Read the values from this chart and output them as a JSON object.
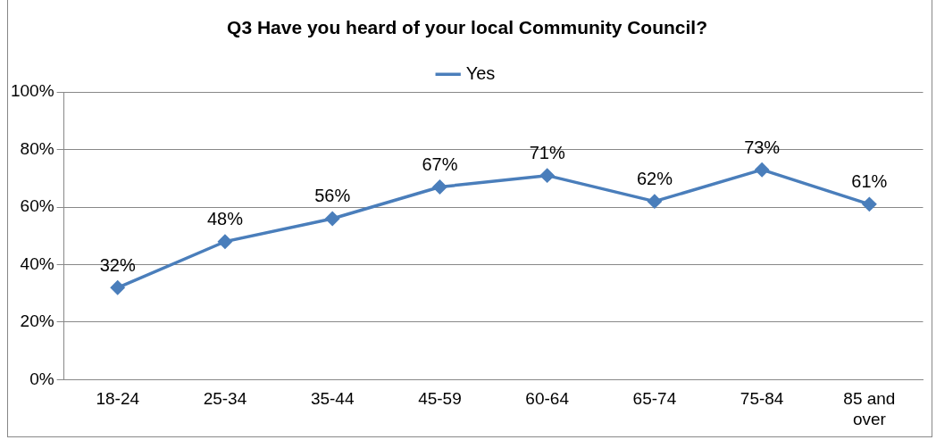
{
  "chart_data": {
    "type": "line",
    "title": "Q3 Have you heard of your local Community Council?",
    "categories": [
      "18-24",
      "25-34",
      "35-44",
      "45-59",
      "60-64",
      "65-74",
      "75-84",
      "85 and over"
    ],
    "series": [
      {
        "name": "Yes",
        "color": "#4a7ebb",
        "values": [
          32,
          48,
          56,
          67,
          71,
          62,
          73,
          61
        ],
        "value_labels": [
          "32%",
          "48%",
          "56%",
          "67%",
          "71%",
          "62%",
          "73%",
          "61%"
        ]
      }
    ],
    "ylim": [
      0,
      100
    ],
    "yticks": [
      {
        "value": 0,
        "label": "0%"
      },
      {
        "value": 20,
        "label": "20%"
      },
      {
        "value": 40,
        "label": "40%"
      },
      {
        "value": 60,
        "label": "60%"
      },
      {
        "value": 80,
        "label": "80%"
      },
      {
        "value": 100,
        "label": "100%"
      }
    ],
    "grid": "y",
    "legend": "top",
    "marker": "diamond",
    "line_style": "solid"
  }
}
